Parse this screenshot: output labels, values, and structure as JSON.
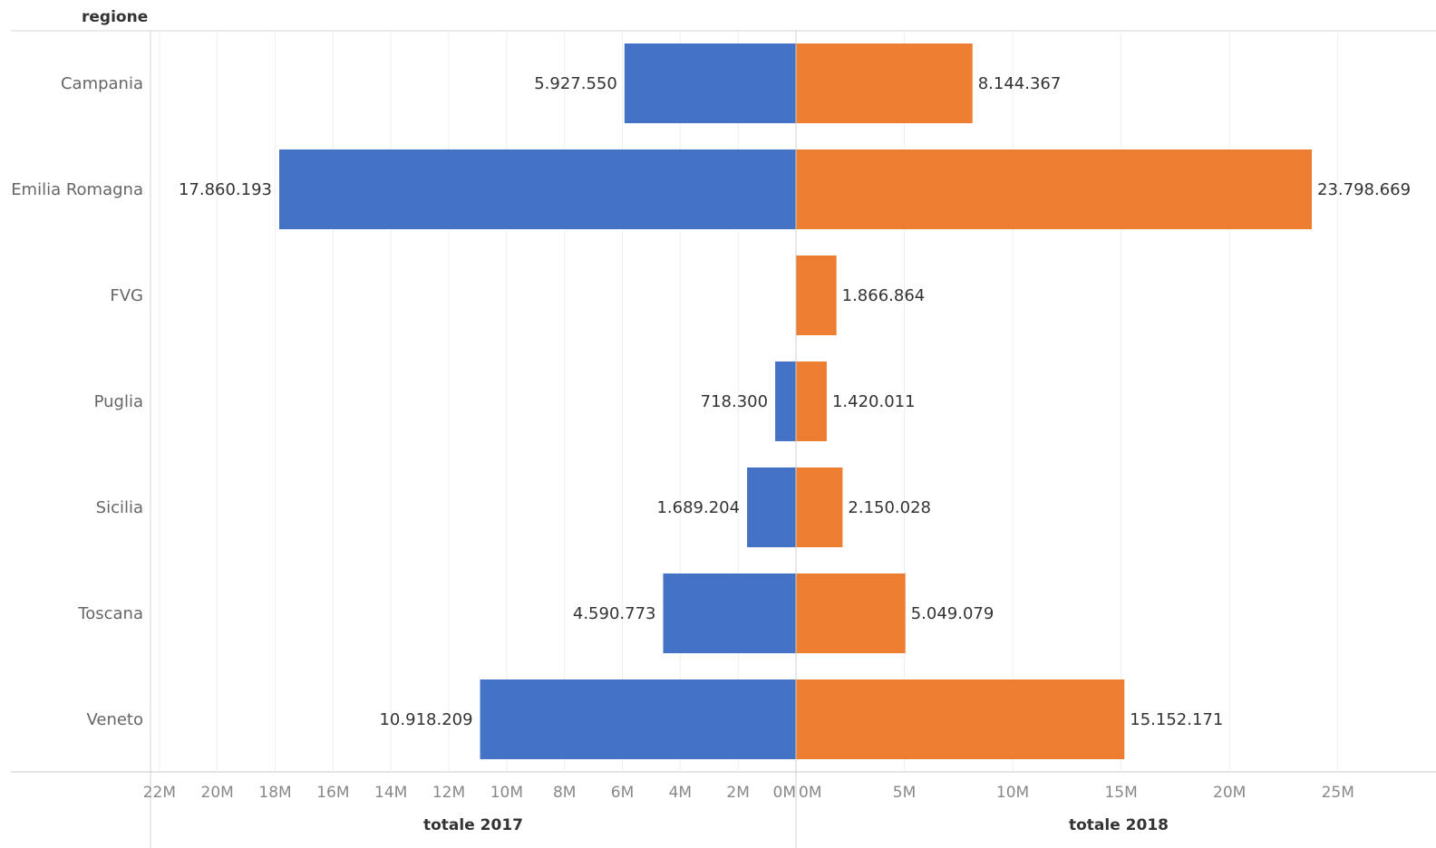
{
  "chart_data": {
    "type": "bar",
    "orientation": "horizontal-diverging",
    "row_header": "regione",
    "categories": [
      "Campania",
      "Emilia Romagna",
      "FVG",
      "Puglia",
      "Sicilia",
      "Toscana",
      "Veneto"
    ],
    "series": [
      {
        "name": "totale 2017",
        "color": "#4472c4",
        "values": [
          5927550,
          17860193,
          null,
          718300,
          1689204,
          4590773,
          10918209
        ],
        "labels": [
          "5.927.550",
          "17.860.193",
          "",
          "718.300",
          "1.689.204",
          "4.590.773",
          "10.918.209"
        ],
        "xlim": [
          0,
          22000000
        ],
        "ticks": [
          "22M",
          "20M",
          "18M",
          "16M",
          "14M",
          "12M",
          "10M",
          "8M",
          "6M",
          "4M",
          "2M",
          "0M"
        ],
        "tick_values": [
          22000000,
          20000000,
          18000000,
          16000000,
          14000000,
          12000000,
          10000000,
          8000000,
          6000000,
          4000000,
          2000000,
          0
        ]
      },
      {
        "name": "totale 2018",
        "color": "#ed7d31",
        "values": [
          8144367,
          23798669,
          1866864,
          1420011,
          2150028,
          5049079,
          15152171
        ],
        "labels": [
          "8.144.367",
          "23.798.669",
          "1.866.864",
          "1.420.011",
          "2.150.028",
          "5.049.079",
          "15.152.171"
        ],
        "xlim": [
          0,
          25000000
        ],
        "ticks": [
          "0M",
          "5M",
          "10M",
          "15M",
          "20M",
          "25M"
        ],
        "tick_values": [
          0,
          5000000,
          10000000,
          15000000,
          20000000,
          25000000
        ]
      }
    ],
    "grid": true,
    "legend": "none"
  }
}
